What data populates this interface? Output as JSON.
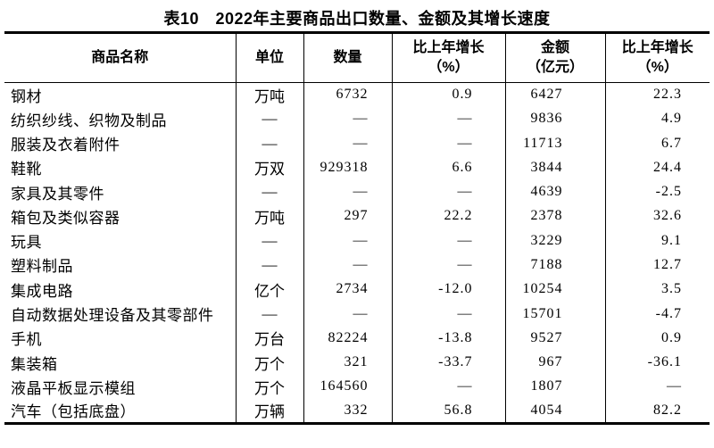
{
  "colors": {
    "background": "#ffffff",
    "text": "#000000",
    "border": "#000000"
  },
  "chart_data": {
    "type": "table",
    "title": "表10　2022年主要商品出口数量、金额及其增长速度",
    "columns": [
      "商品名称",
      "单位",
      "数量",
      "比上年增长（%）",
      "金额（亿元）",
      "比上年增长（%）"
    ],
    "header_lines": [
      [
        "商品名称"
      ],
      [
        "单位"
      ],
      [
        "数量"
      ],
      [
        "比上年增长",
        "（%）"
      ],
      [
        "金额",
        "（亿元）"
      ],
      [
        "比上年增长",
        "（%）"
      ]
    ],
    "rows": [
      [
        "钢材",
        "万吨",
        "6732",
        "0.9",
        "6427",
        "22.3"
      ],
      [
        "纺织纱线、织物及制品",
        "—",
        "—",
        "—",
        "9836",
        "4.9"
      ],
      [
        "服装及衣着附件",
        "—",
        "—",
        "—",
        "11713",
        "6.7"
      ],
      [
        "鞋靴",
        "万双",
        "929318",
        "6.6",
        "3844",
        "24.4"
      ],
      [
        "家具及其零件",
        "—",
        "—",
        "—",
        "4639",
        "-2.5"
      ],
      [
        "箱包及类似容器",
        "万吨",
        "297",
        "22.2",
        "2378",
        "32.6"
      ],
      [
        "玩具",
        "—",
        "—",
        "—",
        "3229",
        "9.1"
      ],
      [
        "塑料制品",
        "—",
        "—",
        "—",
        "7188",
        "12.7"
      ],
      [
        "集成电路",
        "亿个",
        "2734",
        "-12.0",
        "10254",
        "3.5"
      ],
      [
        "自动数据处理设备及其零部件",
        "—",
        "—",
        "—",
        "15701",
        "-4.7"
      ],
      [
        "手机",
        "万台",
        "82224",
        "-13.8",
        "9527",
        "0.9"
      ],
      [
        "集装箱",
        "万个",
        "321",
        "-33.7",
        "967",
        "-36.1"
      ],
      [
        "液晶平板显示模组",
        "万个",
        "164560",
        "—",
        "1807",
        "—"
      ],
      [
        "汽车（包括底盘）",
        "万辆",
        "332",
        "56.8",
        "4054",
        "82.2"
      ]
    ]
  }
}
